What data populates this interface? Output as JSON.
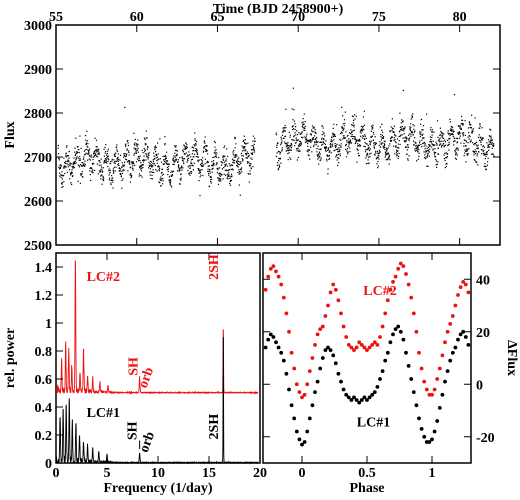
{
  "colors": {
    "lc1": "#000000",
    "lc2": "#ee1111"
  },
  "chart_data": [
    {
      "id": "light-curve",
      "type": "scatter",
      "title": "",
      "xlabel": "Time (BJD 2458900+)",
      "ylabel": "Flux",
      "xlim": [
        55,
        82.5
      ],
      "ylim": [
        2500,
        3000
      ],
      "xticks": [
        "55",
        "60",
        "65",
        "70",
        "75",
        "80"
      ],
      "yticks": [
        "2500",
        "2600",
        "2700",
        "2800",
        "2900",
        "3000"
      ],
      "segments": [
        {
          "x_range": [
            55.1,
            67.3
          ],
          "baseline": 2690,
          "scatter": 40
        },
        {
          "x_range": [
            68.6,
            82.1
          ],
          "baseline": 2735,
          "scatter": 40
        }
      ],
      "gap": [
        67.3,
        68.6
      ]
    },
    {
      "id": "periodogram",
      "type": "line",
      "xlabel": "Frequency (1/day)",
      "ylabel": "rel. power",
      "xlim": [
        0,
        20
      ],
      "ylim": [
        0,
        1.5
      ],
      "xticks": [
        "0",
        "5",
        "10",
        "15",
        "20"
      ],
      "yticks": [
        "0",
        "0.2",
        "0.4",
        "0.6",
        "0.8",
        "1",
        "1.2",
        "1.4"
      ],
      "series": [
        {
          "name": "LC#2",
          "offset": 0.5,
          "peaks": [
            [
              0.55,
              0.22
            ],
            [
              0.95,
              0.35
            ],
            [
              1.25,
              0.28
            ],
            [
              1.55,
              0.18
            ],
            [
              1.9,
              0.97
            ],
            [
              2.35,
              0.14
            ],
            [
              2.7,
              0.3
            ],
            [
              3.1,
              0.12
            ],
            [
              3.6,
              0.1
            ],
            [
              4.3,
              0.07
            ],
            [
              5.1,
              0.05
            ],
            [
              8.2,
              0.1
            ],
            [
              16.4,
              0.5
            ]
          ]
        },
        {
          "name": "LC#1",
          "offset": 0,
          "peaks": [
            [
              0.4,
              0.33
            ],
            [
              0.7,
              0.38
            ],
            [
              1.0,
              0.42
            ],
            [
              1.3,
              0.45
            ],
            [
              1.6,
              0.3
            ],
            [
              1.95,
              0.28
            ],
            [
              2.3,
              0.2
            ],
            [
              2.7,
              0.15
            ],
            [
              3.1,
              0.12
            ],
            [
              3.6,
              0.1
            ],
            [
              4.2,
              0.08
            ],
            [
              5.0,
              0.06
            ],
            [
              8.2,
              0.07
            ],
            [
              16.4,
              1.0
            ]
          ]
        }
      ],
      "annotations": [
        {
          "text": "LC#2",
          "series": "LC#2"
        },
        {
          "text": "SH",
          "series": "LC#2"
        },
        {
          "text": "orb",
          "series": "LC#2"
        },
        {
          "text": "2SH",
          "series": "LC#2"
        },
        {
          "text": "LC#1",
          "series": "LC#1"
        },
        {
          "text": "SH",
          "series": "LC#1"
        },
        {
          "text": "orb",
          "series": "LC#1"
        },
        {
          "text": "2SH",
          "series": "LC#1"
        }
      ]
    },
    {
      "id": "phase-curve",
      "type": "scatter",
      "xlabel": "Phase",
      "ylabel": "ΔFlux",
      "xlim": [
        -0.3,
        1.3
      ],
      "ylim": [
        -30,
        50
      ],
      "xticks": [
        "0",
        "0.5",
        "1"
      ],
      "yticks": [
        "-20",
        "0",
        "20",
        "40"
      ],
      "series": [
        {
          "name": "LC#2",
          "points": [
            [
              -0.28,
              36
            ],
            [
              -0.26,
              41
            ],
            [
              -0.24,
              44
            ],
            [
              -0.22,
              45
            ],
            [
              -0.2,
              43
            ],
            [
              -0.18,
              41
            ],
            [
              -0.16,
              38
            ],
            [
              -0.14,
              33
            ],
            [
              -0.12,
              27
            ],
            [
              -0.1,
              20
            ],
            [
              -0.08,
              12
            ],
            [
              -0.06,
              6
            ],
            [
              -0.04,
              0
            ],
            [
              -0.02,
              -3
            ],
            [
              0.0,
              -5
            ],
            [
              0.02,
              -4
            ],
            [
              0.04,
              0
            ],
            [
              0.06,
              5
            ],
            [
              0.08,
              10
            ],
            [
              0.1,
              15
            ],
            [
              0.12,
              19
            ],
            [
              0.14,
              21
            ],
            [
              0.16,
              22
            ],
            [
              0.18,
              26
            ],
            [
              0.2,
              30
            ],
            [
              0.22,
              35
            ],
            [
              0.24,
              38
            ],
            [
              0.26,
              36
            ],
            [
              0.28,
              32
            ],
            [
              0.3,
              27
            ],
            [
              0.32,
              22
            ],
            [
              0.34,
              18
            ],
            [
              0.36,
              15
            ],
            [
              0.38,
              14
            ],
            [
              0.4,
              13
            ],
            [
              0.42,
              14
            ],
            [
              0.44,
              16
            ],
            [
              0.46,
              15
            ],
            [
              0.48,
              14
            ],
            [
              0.5,
              13
            ],
            [
              0.52,
              14
            ],
            [
              0.54,
              15
            ],
            [
              0.56,
              16
            ],
            [
              0.58,
              15
            ],
            [
              0.6,
              18
            ],
            [
              0.62,
              22
            ],
            [
              0.64,
              27
            ],
            [
              0.66,
              32
            ],
            [
              0.68,
              36
            ],
            [
              0.7,
              39
            ],
            [
              0.72,
              41
            ],
            [
              0.74,
              44
            ],
            [
              0.76,
              46
            ],
            [
              0.78,
              45
            ],
            [
              0.8,
              42
            ],
            [
              0.82,
              38
            ],
            [
              0.84,
              33
            ],
            [
              0.86,
              27
            ],
            [
              0.88,
              20
            ],
            [
              0.9,
              12
            ],
            [
              0.92,
              6
            ],
            [
              0.94,
              1
            ],
            [
              0.96,
              -2
            ],
            [
              0.98,
              -4
            ],
            [
              1.0,
              -4
            ],
            [
              1.02,
              -2
            ],
            [
              1.04,
              2
            ],
            [
              1.06,
              6
            ],
            [
              1.08,
              11
            ],
            [
              1.1,
              16
            ],
            [
              1.12,
              20
            ],
            [
              1.14,
              23
            ],
            [
              1.16,
              26
            ],
            [
              1.18,
              30
            ],
            [
              1.2,
              34
            ],
            [
              1.22,
              37
            ],
            [
              1.24,
              39
            ],
            [
              1.26,
              38
            ],
            [
              1.28,
              35
            ]
          ]
        },
        {
          "name": "LC#1",
          "points": [
            [
              -0.28,
              14
            ],
            [
              -0.26,
              17
            ],
            [
              -0.24,
              19
            ],
            [
              -0.22,
              18
            ],
            [
              -0.2,
              16
            ],
            [
              -0.18,
              14
            ],
            [
              -0.16,
              12
            ],
            [
              -0.14,
              9
            ],
            [
              -0.12,
              4
            ],
            [
              -0.1,
              -2
            ],
            [
              -0.08,
              -8
            ],
            [
              -0.06,
              -13
            ],
            [
              -0.04,
              -18
            ],
            [
              -0.02,
              -21
            ],
            [
              0.0,
              -23
            ],
            [
              0.02,
              -22
            ],
            [
              0.04,
              -18
            ],
            [
              0.06,
              -13
            ],
            [
              0.08,
              -8
            ],
            [
              0.1,
              -3
            ],
            [
              0.12,
              1
            ],
            [
              0.14,
              6
            ],
            [
              0.16,
              10
            ],
            [
              0.18,
              13
            ],
            [
              0.2,
              14
            ],
            [
              0.22,
              13
            ],
            [
              0.24,
              11
            ],
            [
              0.26,
              8
            ],
            [
              0.28,
              4
            ],
            [
              0.3,
              1
            ],
            [
              0.32,
              -2
            ],
            [
              0.34,
              -4
            ],
            [
              0.36,
              -5
            ],
            [
              0.38,
              -6
            ],
            [
              0.4,
              -5
            ],
            [
              0.42,
              -6
            ],
            [
              0.44,
              -7
            ],
            [
              0.46,
              -6
            ],
            [
              0.48,
              -5
            ],
            [
              0.5,
              -6
            ],
            [
              0.52,
              -5
            ],
            [
              0.54,
              -4
            ],
            [
              0.56,
              -3
            ],
            [
              0.58,
              -1
            ],
            [
              0.6,
              2
            ],
            [
              0.62,
              5
            ],
            [
              0.64,
              9
            ],
            [
              0.66,
              12
            ],
            [
              0.68,
              16
            ],
            [
              0.7,
              19
            ],
            [
              0.72,
              21
            ],
            [
              0.74,
              22
            ],
            [
              0.76,
              20
            ],
            [
              0.78,
              17
            ],
            [
              0.8,
              12
            ],
            [
              0.82,
              7
            ],
            [
              0.84,
              2
            ],
            [
              0.86,
              -3
            ],
            [
              0.88,
              -8
            ],
            [
              0.9,
              -13
            ],
            [
              0.92,
              -17
            ],
            [
              0.94,
              -20
            ],
            [
              0.96,
              -22
            ],
            [
              0.98,
              -22
            ],
            [
              1.0,
              -21
            ],
            [
              1.02,
              -18
            ],
            [
              1.04,
              -14
            ],
            [
              1.06,
              -9
            ],
            [
              1.08,
              -4
            ],
            [
              1.1,
              1
            ],
            [
              1.12,
              5
            ],
            [
              1.14,
              9
            ],
            [
              1.16,
              12
            ],
            [
              1.18,
              14
            ],
            [
              1.2,
              17
            ],
            [
              1.22,
              19
            ],
            [
              1.24,
              20
            ],
            [
              1.26,
              18
            ],
            [
              1.28,
              15
            ]
          ]
        }
      ],
      "annotations": [
        {
          "text": "LC#2",
          "series": "LC#2"
        },
        {
          "text": "LC#1",
          "series": "LC#1"
        }
      ]
    }
  ]
}
